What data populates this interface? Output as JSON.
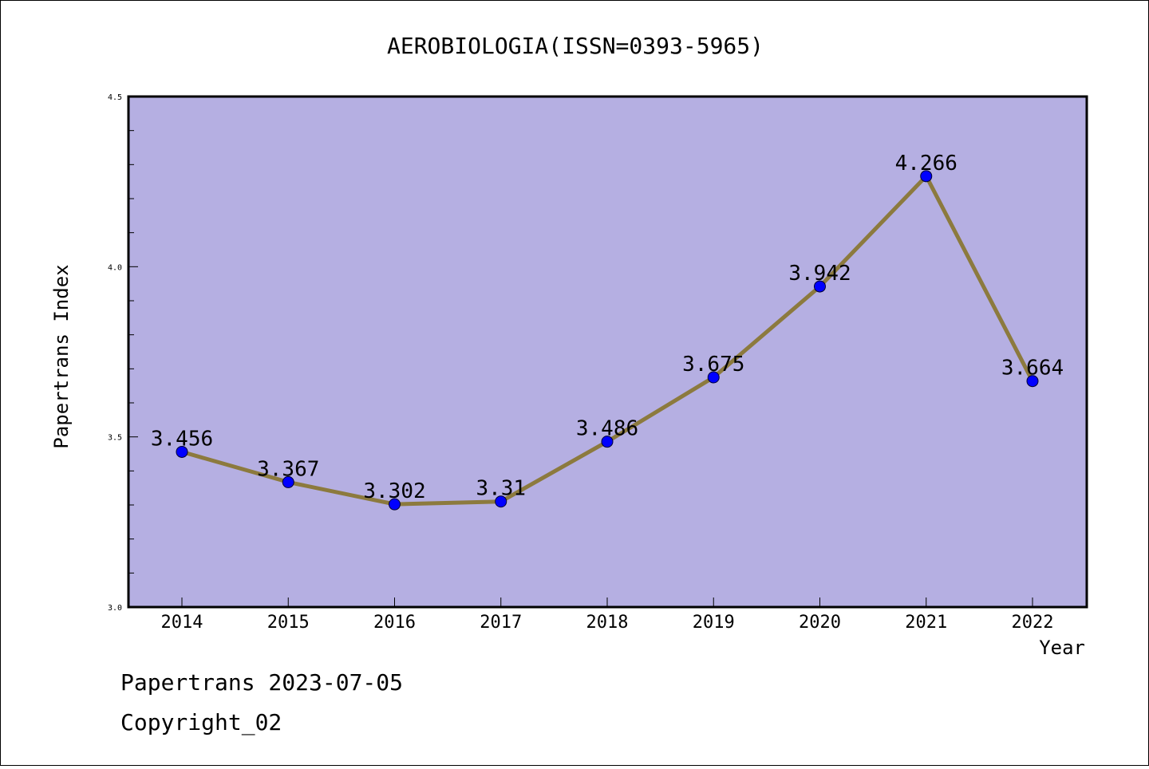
{
  "chart_data": {
    "type": "line",
    "title": "AEROBIOLOGIA(ISSN=0393-5965)",
    "xlabel": "Year",
    "ylabel": "Papertrans Index",
    "x": [
      2014,
      2015,
      2016,
      2017,
      2018,
      2019,
      2020,
      2021,
      2022
    ],
    "x_tick_labels": [
      "2014",
      "2015",
      "2016",
      "2017",
      "2018",
      "2019",
      "2020",
      "2021",
      "2022"
    ],
    "values": [
      3.456,
      3.367,
      3.302,
      3.31,
      3.486,
      3.675,
      3.942,
      4.266,
      3.664
    ],
    "data_labels": [
      "3.456",
      "3.367",
      "3.302",
      "3.31",
      "3.486",
      "3.675",
      "3.942",
      "4.266",
      "3.664"
    ],
    "ylim": [
      3.0,
      4.5
    ],
    "y_tick_values": [
      3.0,
      3.5,
      4.0,
      4.5
    ],
    "y_tick_labels": [
      "3.0",
      "3.5",
      "4.0",
      "4.5"
    ],
    "grid": false,
    "colors": {
      "plot_background": "#b5afe2",
      "line": "#8c7a3e",
      "marker": "#0000ff"
    }
  },
  "footer": {
    "source_line": "Papertrans 2023-07-05",
    "copyright": "Copyright_02"
  }
}
